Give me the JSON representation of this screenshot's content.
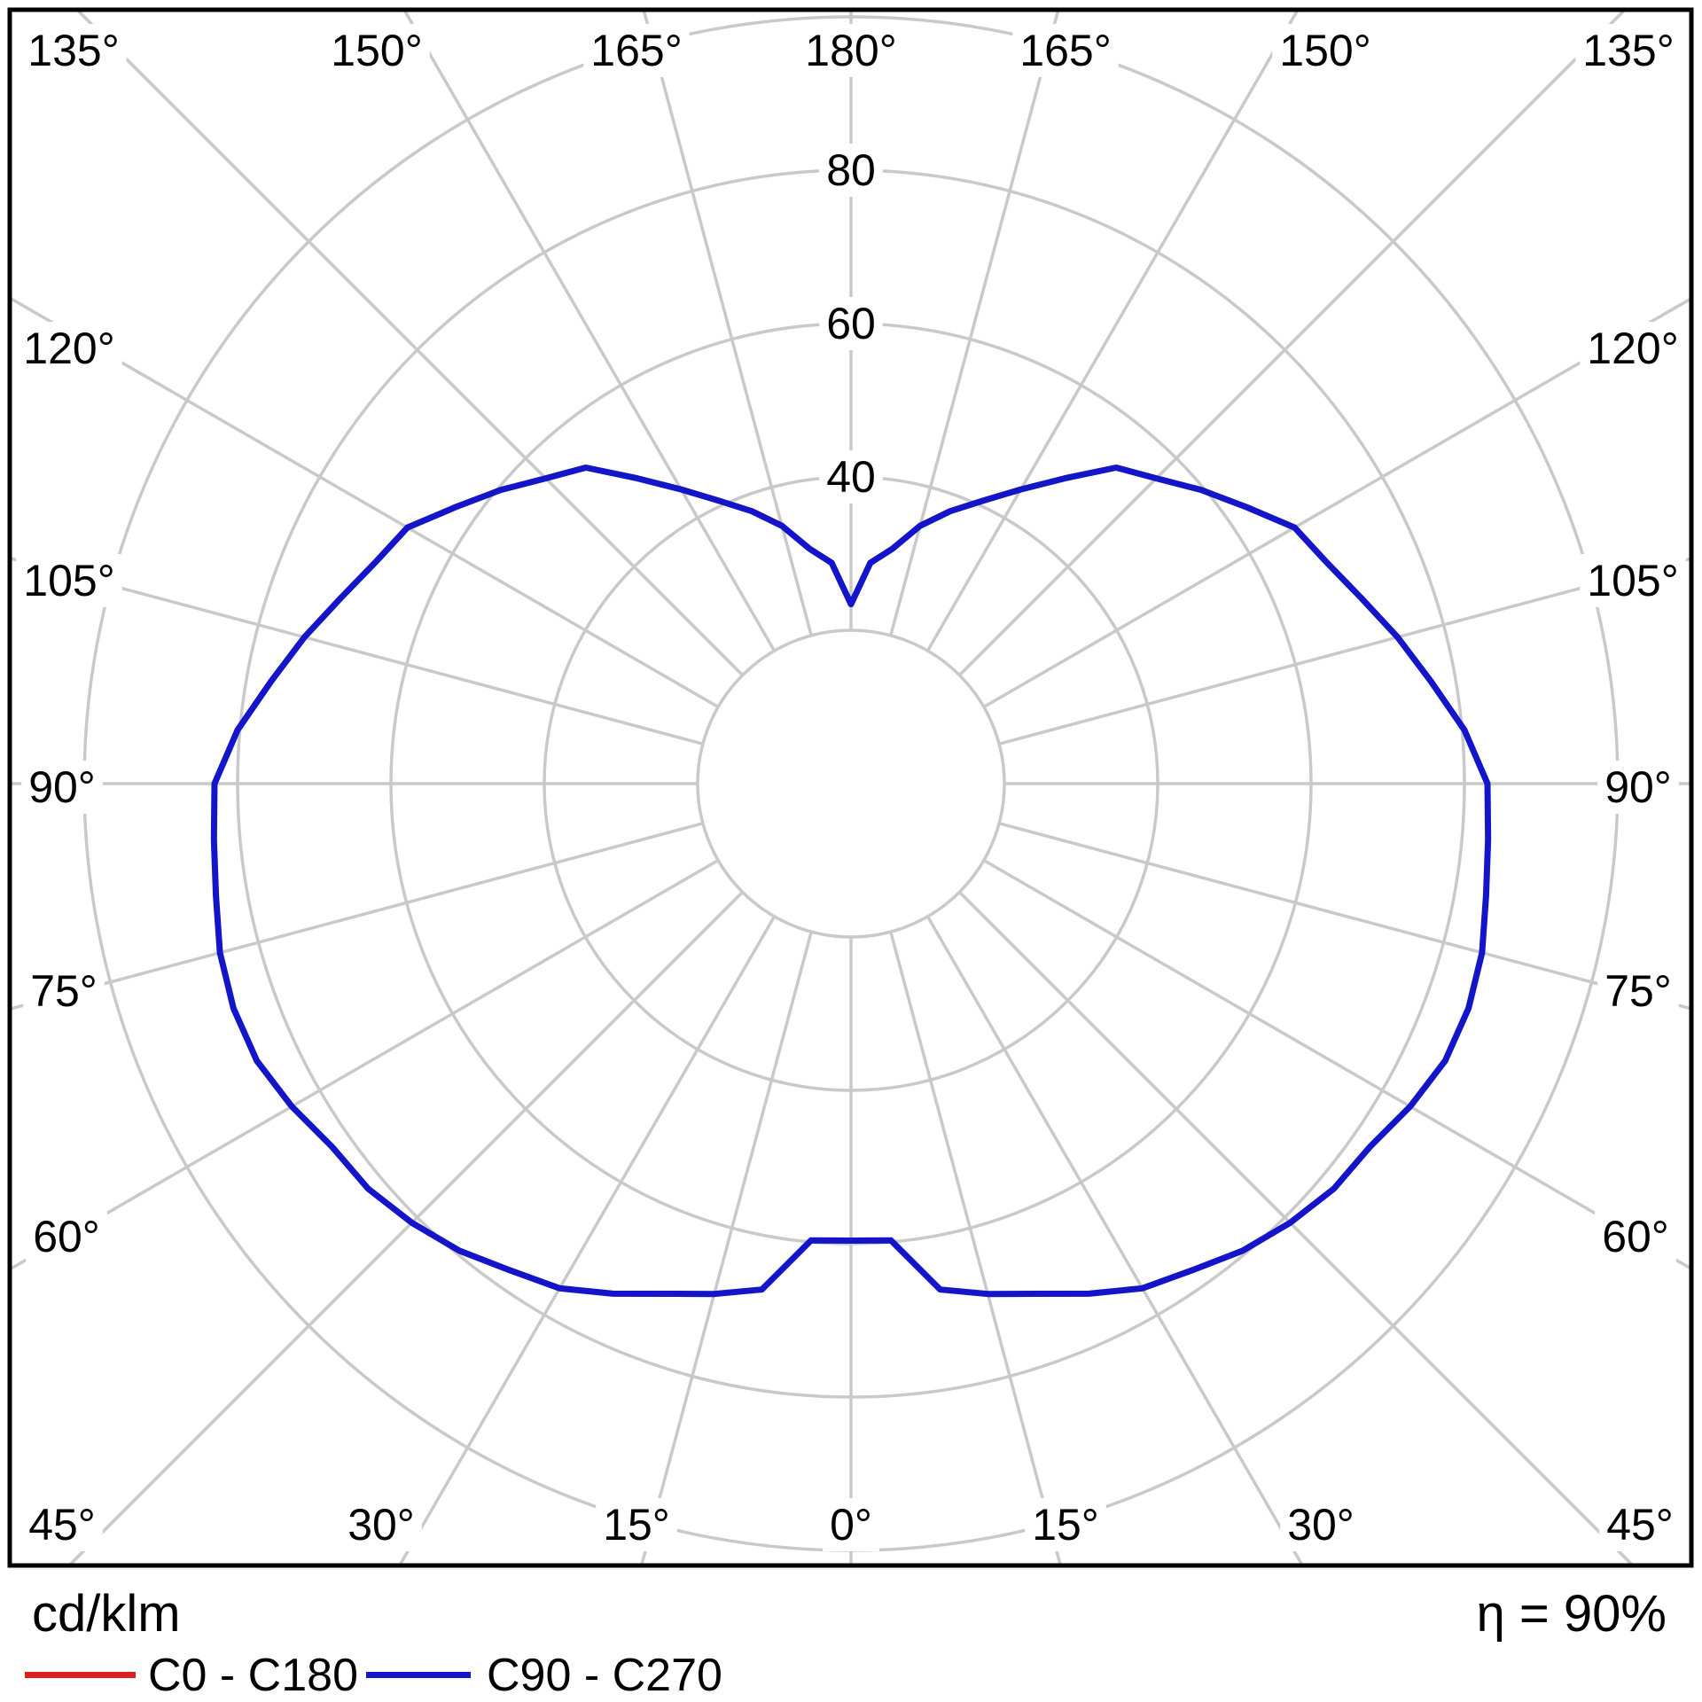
{
  "chart_data": {
    "type": "line",
    "variant": "polar-photometric-intensity-diagram",
    "title": "",
    "units_label": "cd/klm",
    "efficiency": "η = 90%",
    "grid_color": "#c9c9c9",
    "border_color": "#000000",
    "angular_axis": {
      "unit": "degrees",
      "step": 15,
      "orientation": "0° at bottom, 180° at top, angles mirrored left and right",
      "labels": [
        "0°",
        "15°",
        "30°",
        "45°",
        "60°",
        "75°",
        "90°",
        "105°",
        "120°",
        "135°",
        "150°",
        "165°",
        "180°"
      ]
    },
    "radial_axis": {
      "min": 0,
      "max": 100,
      "gridline_values": [
        20,
        40,
        60,
        80,
        100
      ],
      "tick_labels": [
        "40",
        "60",
        "80"
      ],
      "tick_label_values": [
        40,
        60,
        80
      ]
    },
    "legend": [
      {
        "label": "C0 - C180",
        "color": "#dc2020"
      },
      {
        "label": "C90 - C270",
        "color": "#1414c8"
      }
    ],
    "series": [
      {
        "name": "C0 - C180",
        "color": "#dc2020",
        "visible_in_plot": false
      },
      {
        "name": "C90 - C270",
        "color": "#1414c8",
        "mirrored": true,
        "gamma_deg": [
          0,
          5,
          10,
          15,
          20,
          25,
          30,
          35,
          40,
          45,
          50,
          55,
          60,
          65,
          70,
          75,
          80,
          85,
          90,
          95,
          100,
          105,
          110,
          115,
          120,
          125,
          130,
          135,
          140,
          145,
          150,
          155,
          160,
          165,
          170,
          175,
          180
        ],
        "values": [
          59.6,
          59.8,
          67.0,
          68.9,
          70.8,
          73.4,
          76.0,
          77.5,
          79.5,
          81.0,
          82.2,
          82.6,
          84.2,
          85.5,
          85.7,
          85.2,
          84.1,
          83.4,
          83.0,
          80.3,
          76.8,
          73.8,
          70.8,
          68.4,
          66.8,
          62.9,
          59.6,
          56.3,
          53.8,
          48.6,
          44.3,
          40.7,
          37.8,
          34.8,
          31.1,
          28.9,
          23.4
        ]
      }
    ]
  }
}
